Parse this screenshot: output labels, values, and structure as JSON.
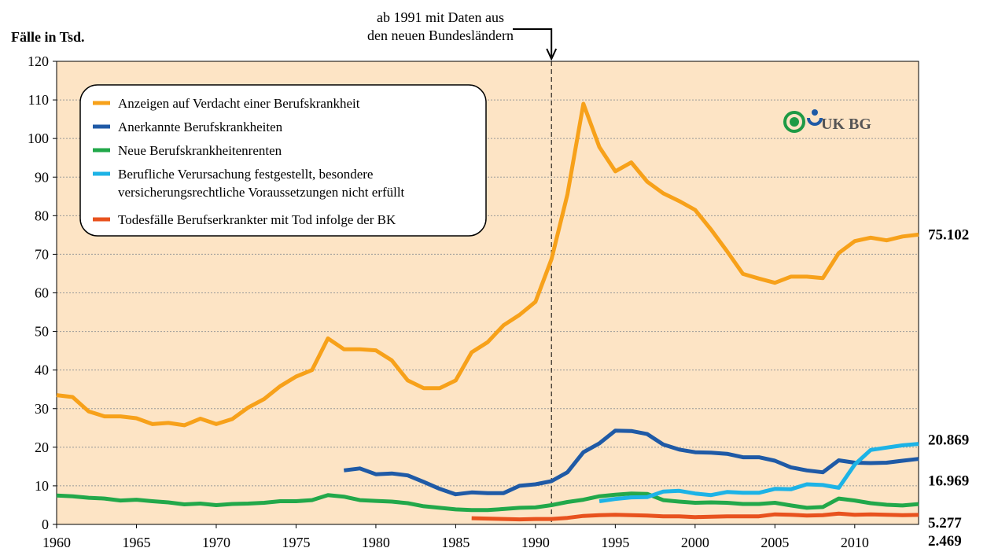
{
  "chart_data": {
    "type": "line",
    "y_label": "Fälle in Tsd.",
    "annotation": {
      "lines": [
        "ab 1991 mit Daten aus",
        "den neuen Bundesländern"
      ],
      "x": 1991
    },
    "logo_text": "UK BG",
    "legend": "upper left",
    "grid": true,
    "xlim": [
      1960,
      2014
    ],
    "xticks": [
      1960,
      1965,
      1970,
      1975,
      1980,
      1985,
      1990,
      1995,
      2000,
      2005,
      2010
    ],
    "ylim": [
      0,
      120
    ],
    "yticks": [
      0,
      10,
      20,
      30,
      40,
      50,
      60,
      70,
      80,
      90,
      100,
      110,
      120
    ],
    "x": [
      1960,
      1961,
      1962,
      1963,
      1964,
      1965,
      1966,
      1967,
      1968,
      1969,
      1970,
      1971,
      1972,
      1973,
      1974,
      1975,
      1976,
      1977,
      1978,
      1979,
      1980,
      1981,
      1982,
      1983,
      1984,
      1985,
      1986,
      1987,
      1988,
      1989,
      1990,
      1991,
      1992,
      1993,
      1994,
      1995,
      1996,
      1997,
      1998,
      1999,
      2000,
      2001,
      2002,
      2003,
      2004,
      2005,
      2006,
      2007,
      2008,
      2009,
      2010,
      2011,
      2012,
      2013,
      2014
    ],
    "series": [
      {
        "name": "Anzeigen auf Verdacht einer Berufskrankheit",
        "color": "#f7a11a",
        "end_label": "75.102",
        "values": [
          33.5,
          33,
          29.3,
          28,
          28,
          27.5,
          26,
          26.3,
          25.7,
          27.4,
          26,
          27.3,
          30.3,
          32.5,
          35.8,
          38.3,
          40,
          48.2,
          45.4,
          45.4,
          45.1,
          42.5,
          37.3,
          35.3,
          35.3,
          37.3,
          44.6,
          47.2,
          51.6,
          54.3,
          57.7,
          68.7,
          85.5,
          109,
          97.8,
          91.5,
          93.8,
          88.8,
          85.8,
          83.8,
          81.5,
          76.4,
          70.8,
          64.9,
          63.7,
          62.6,
          64.2,
          64.2,
          63.8,
          70.3,
          73.4,
          74.3,
          73.6,
          74.6,
          75.102
        ]
      },
      {
        "name": "Anerkannte Berufskrankheiten",
        "color": "#1f5aa6",
        "end_label": "16.969",
        "values": [
          null,
          null,
          null,
          null,
          null,
          null,
          null,
          null,
          null,
          null,
          null,
          null,
          null,
          null,
          null,
          null,
          null,
          null,
          14,
          14.5,
          13,
          13.2,
          12.7,
          11,
          9.2,
          7.8,
          8.3,
          8.1,
          8.1,
          10,
          10.4,
          11.2,
          13.5,
          18.7,
          21,
          24.3,
          24.2,
          23.4,
          20.7,
          19.4,
          18.7,
          18.6,
          18.3,
          17.4,
          17.4,
          16.5,
          14.8,
          14,
          13.5,
          16.6,
          16,
          15.9,
          16,
          16.5,
          16.969
        ]
      },
      {
        "name": "Neue Berufskrankheitenrenten",
        "color": "#22a84a",
        "end_label": "5.277",
        "values": [
          7.5,
          7.3,
          6.9,
          6.7,
          6.2,
          6.4,
          6.0,
          5.7,
          5.2,
          5.4,
          5.0,
          5.3,
          5.4,
          5.6,
          6.0,
          6.0,
          6.3,
          7.6,
          7.2,
          6.3,
          6.1,
          5.9,
          5.5,
          4.7,
          4.3,
          3.9,
          3.7,
          3.7,
          4.0,
          4.3,
          4.4,
          5.0,
          5.8,
          6.4,
          7.3,
          7.7,
          8.0,
          7.9,
          6.3,
          5.9,
          5.6,
          5.7,
          5.6,
          5.3,
          5.3,
          5.6,
          4.9,
          4.3,
          4.5,
          6.7,
          6.2,
          5.5,
          5.1,
          4.9,
          5.277
        ]
      },
      {
        "name": "Berufliche Verursachung festgestellt, besondere\nversicherungsrechtliche Voraussetzungen nicht erfüllt",
        "color": "#1db3e6",
        "end_label": "20.869",
        "values": [
          null,
          null,
          null,
          null,
          null,
          null,
          null,
          null,
          null,
          null,
          null,
          null,
          null,
          null,
          null,
          null,
          null,
          null,
          null,
          null,
          null,
          null,
          null,
          null,
          null,
          null,
          null,
          null,
          null,
          null,
          null,
          null,
          null,
          null,
          6.0,
          6.6,
          7.0,
          7.1,
          8.5,
          8.7,
          8.0,
          7.6,
          8.4,
          8.2,
          8.2,
          9.2,
          9.1,
          10.4,
          10.2,
          9.5,
          15.5,
          19.3,
          19.9,
          20.5,
          20.869
        ]
      },
      {
        "name": "Todesfälle Berufserkrankter mit Tod infolge der BK",
        "color": "#e8521e",
        "end_label": "2.469",
        "values": [
          null,
          null,
          null,
          null,
          null,
          null,
          null,
          null,
          null,
          null,
          null,
          null,
          null,
          null,
          null,
          null,
          null,
          null,
          null,
          null,
          null,
          null,
          null,
          null,
          null,
          null,
          1.6,
          1.5,
          1.4,
          1.3,
          1.4,
          1.4,
          1.7,
          2.2,
          2.4,
          2.5,
          2.4,
          2.3,
          2.1,
          2.1,
          1.9,
          2.0,
          2.1,
          2.1,
          2.1,
          2.6,
          2.5,
          2.3,
          2.4,
          2.8,
          2.5,
          2.6,
          2.5,
          2.4,
          2.469
        ]
      }
    ]
  }
}
